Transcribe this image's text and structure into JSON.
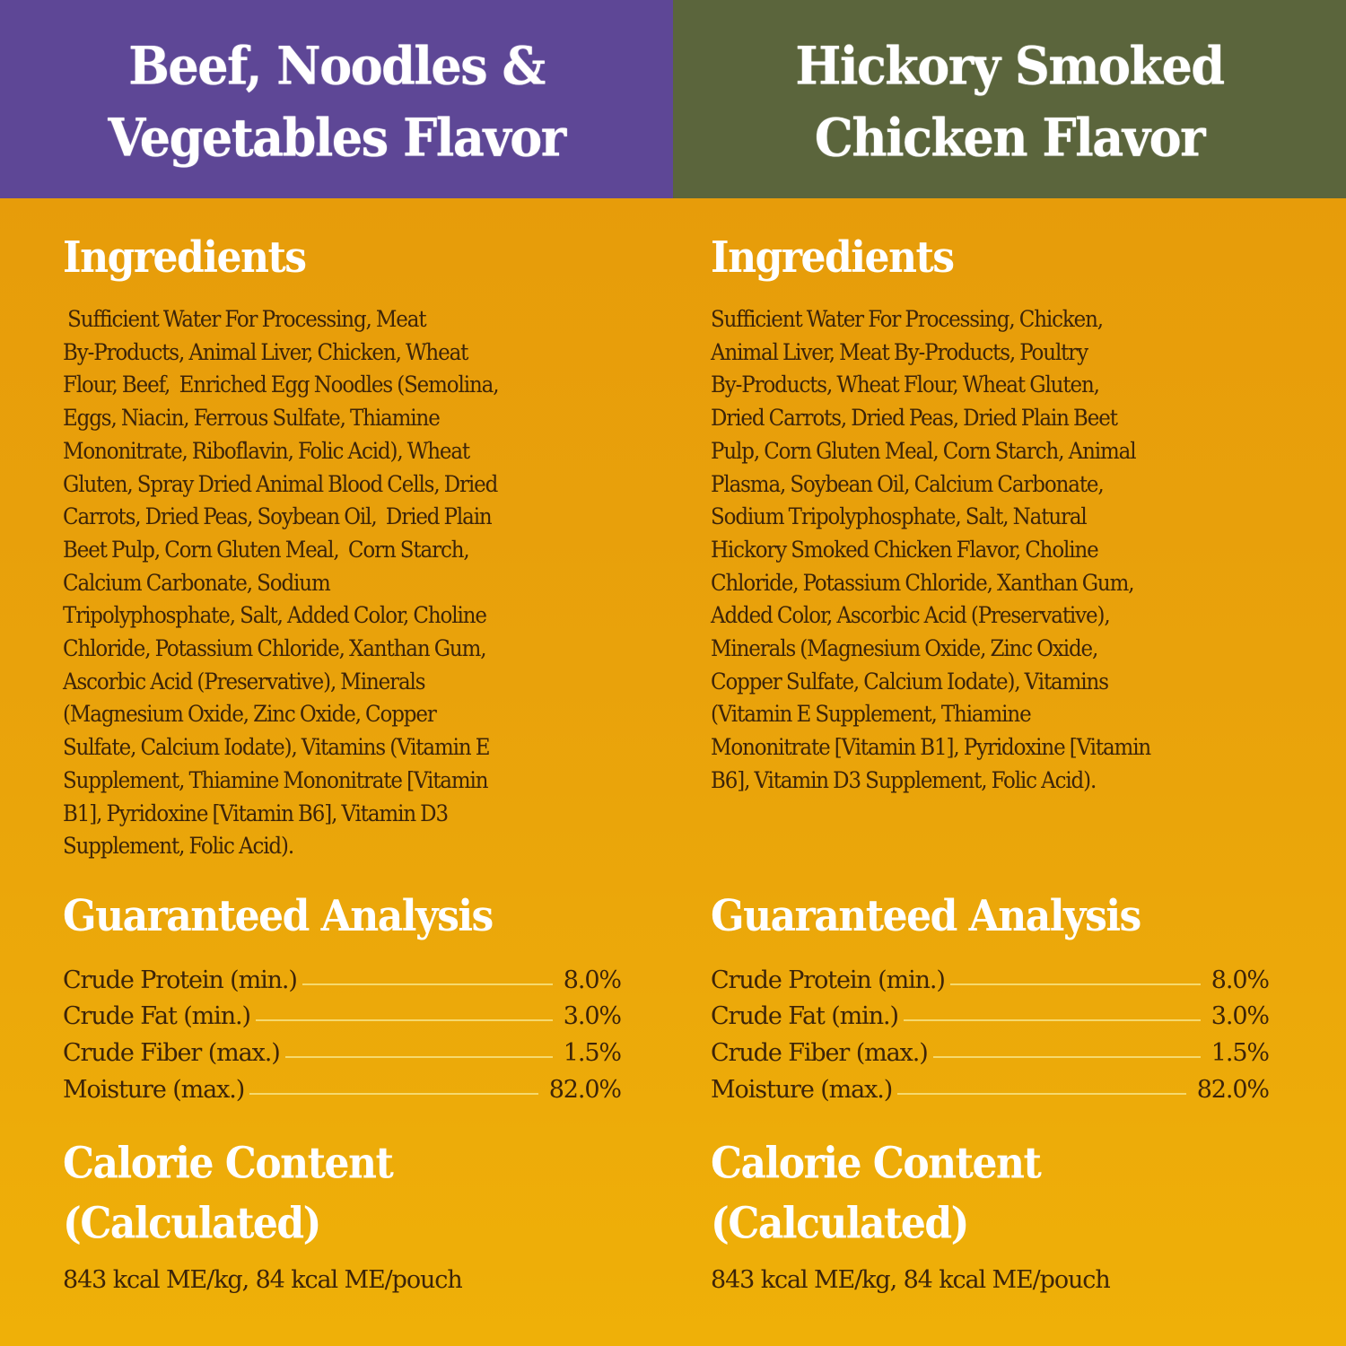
{
  "colors": {
    "left_header_bg": "#5e4796",
    "right_header_bg": "#5b653c",
    "body_bg_top": "#e69a0a",
    "body_bg_bottom": "#efb008",
    "heading_text": "#ffffff",
    "body_text": "#3d2408",
    "leader_line": "#f6d96e"
  },
  "products": [
    {
      "title": "Beef, Noodles &\nVegetables Flavor",
      "ingredients_heading": "Ingredients",
      "ingredients_lines": [
        " Sufficient Water For Processing, Meat",
        "By-Products, Animal Liver, Chicken, Wheat",
        "Flour, Beef,  Enriched Egg Noodles (Semolina,",
        "Eggs, Niacin, Ferrous Sulfate, Thiamine",
        "Mononitrate, Riboflavin, Folic Acid), Wheat",
        "Gluten, Spray Dried Animal Blood Cells, Dried",
        "Carrots, Dried Peas, Soybean Oil,  Dried Plain",
        "Beet Pulp, Corn Gluten Meal,  Corn Starch,",
        "Calcium Carbonate, Sodium",
        "Tripolyphosphate, Salt, Added Color, Choline",
        "Chloride, Potassium Chloride, Xanthan Gum,",
        "Ascorbic Acid (Preservative), Minerals",
        "(Magnesium Oxide, Zinc Oxide, Copper",
        "Sulfate, Calcium Iodate), Vitamins (Vitamin E",
        "Supplement, Thiamine Mononitrate [Vitamin",
        "B1], Pyridoxine [Vitamin B6], Vitamin D3",
        "Supplement, Folic Acid)."
      ],
      "analysis_heading": "Guaranteed Analysis",
      "analysis": [
        {
          "label": "Crude Protein (min.)",
          "value": "8.0%"
        },
        {
          "label": "Crude Fat (min.)",
          "value": "3.0%"
        },
        {
          "label": "Crude Fiber (max.)",
          "value": "1.5%"
        },
        {
          "label": "Moisture (max.)",
          "value": "82.0%"
        }
      ],
      "calorie_heading": "Calorie Content\n(Calculated)",
      "calorie_text": "843 kcal ME/kg, 84 kcal ME/pouch"
    },
    {
      "title": "Hickory Smoked\nChicken Flavor",
      "ingredients_heading": "Ingredients",
      "ingredients_lines": [
        "Sufficient Water For Processing, Chicken,",
        "Animal Liver, Meat By-Products, Poultry",
        "By-Products, Wheat Flour, Wheat Gluten,",
        "Dried Carrots, Dried Peas, Dried Plain Beet",
        "Pulp, Corn Gluten Meal, Corn Starch, Animal",
        "Plasma, Soybean Oil, Calcium Carbonate,",
        "Sodium Tripolyphosphate, Salt, Natural",
        "Hickory Smoked Chicken Flavor, Choline",
        "Chloride, Potassium Chloride, Xanthan Gum,",
        "Added Color, Ascorbic Acid (Preservative),",
        "Minerals (Magnesium Oxide, Zinc Oxide,",
        "Copper Sulfate, Calcium Iodate), Vitamins",
        "(Vitamin E Supplement, Thiamine",
        "Mononitrate [Vitamin B1], Pyridoxine [Vitamin",
        "B6], Vitamin D3 Supplement, Folic Acid)."
      ],
      "analysis_heading": "Guaranteed Analysis",
      "analysis": [
        {
          "label": "Crude Protein (min.)",
          "value": "8.0%"
        },
        {
          "label": "Crude Fat (min.)",
          "value": "3.0%"
        },
        {
          "label": "Crude Fiber (max.)",
          "value": "1.5%"
        },
        {
          "label": "Moisture (max.)",
          "value": "82.0%"
        }
      ],
      "calorie_heading": "Calorie Content\n(Calculated)",
      "calorie_text": "843 kcal ME/kg, 84 kcal ME/pouch"
    }
  ]
}
